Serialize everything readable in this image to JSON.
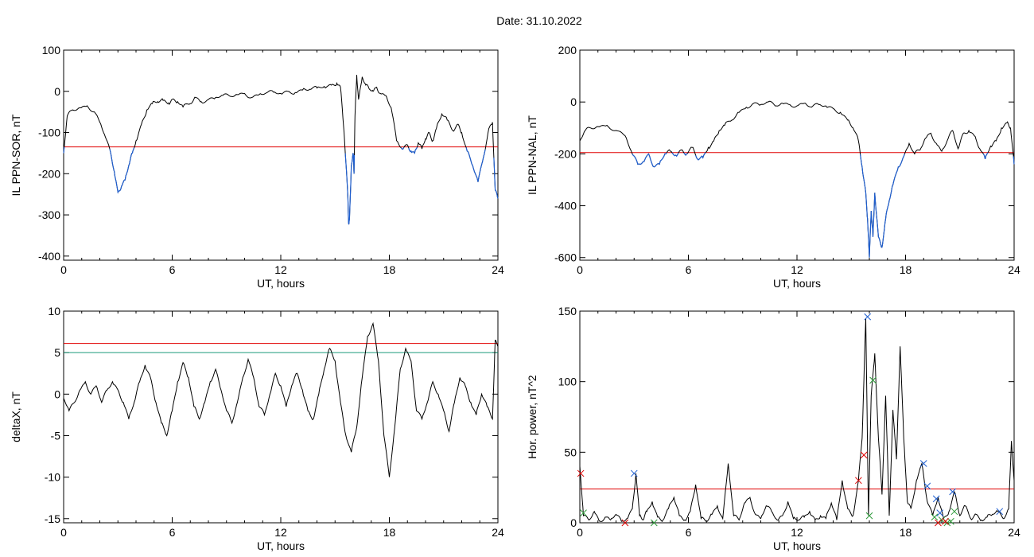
{
  "page": {
    "title": "Date:  31.10.2022"
  },
  "chart_data": [
    {
      "type": "line",
      "xlabel": "UT, hours",
      "ylabel": "IL PPN-SOR, nT",
      "xlim": [
        0,
        24
      ],
      "ylim": [
        -410,
        100
      ],
      "xticks": [
        0,
        6,
        12,
        18,
        24
      ],
      "yticks": [
        -400,
        -300,
        -200,
        -100,
        0,
        100
      ],
      "threshold": -135,
      "colors": {
        "line": "#000000",
        "below": "#1f5fd0",
        "threshold": "#e00000"
      },
      "series": [
        {
          "x": [
            0,
            0.2,
            0.5,
            0.9,
            1.3,
            1.7,
            2.0,
            2.3,
            2.6,
            2.8,
            3.0,
            3.2,
            3.4,
            3.6,
            3.8,
            4.0,
            4.3,
            4.6,
            4.9,
            5.2,
            5.5,
            5.8,
            6.0,
            6.3,
            6.6,
            7.0,
            7.3,
            7.6,
            8.0,
            8.4,
            8.8,
            9.2,
            9.6,
            10.0,
            10.4,
            10.8,
            11.2,
            11.6,
            12.0,
            12.4,
            12.8,
            13.2,
            13.6,
            14.0,
            14.4,
            14.8,
            15.1,
            15.3,
            15.5,
            15.7,
            15.75,
            15.8,
            15.9,
            16.0,
            16.05,
            16.1,
            16.2,
            16.3,
            16.5,
            16.7,
            16.9,
            17.1,
            17.3,
            17.5,
            17.8,
            18.1,
            18.4,
            18.7,
            19.0,
            19.2,
            19.4,
            19.6,
            19.8,
            20.0,
            20.2,
            20.4,
            20.6,
            20.9,
            21.2,
            21.5,
            21.8,
            22.0,
            22.3,
            22.6,
            22.9,
            23.2,
            23.5,
            23.7,
            23.85,
            24.0
          ],
          "y": [
            -150,
            -60,
            -45,
            -40,
            -35,
            -50,
            -75,
            -110,
            -150,
            -195,
            -245,
            -230,
            -215,
            -180,
            -150,
            -120,
            -80,
            -45,
            -30,
            -25,
            -22,
            -28,
            -20,
            -25,
            -38,
            -30,
            -15,
            -25,
            -20,
            -15,
            -10,
            -12,
            -8,
            -5,
            -15,
            -8,
            -4,
            -2,
            -5,
            0,
            -3,
            3,
            5,
            8,
            12,
            15,
            20,
            10,
            -100,
            -250,
            -320,
            -310,
            -180,
            -150,
            -200,
            -60,
            40,
            -20,
            35,
            15,
            5,
            0,
            10,
            -5,
            -10,
            -40,
            -120,
            -140,
            -130,
            -145,
            -150,
            -125,
            -140,
            -115,
            -100,
            -120,
            -90,
            -55,
            -70,
            -95,
            -80,
            -100,
            -145,
            -180,
            -220,
            -160,
            -90,
            -75,
            -240,
            -260
          ]
        }
      ]
    },
    {
      "type": "line",
      "xlabel": "UT, hours",
      "ylabel": "IL PPN-NAL, nT",
      "xlim": [
        0,
        24
      ],
      "ylim": [
        -610,
        200
      ],
      "xticks": [
        0,
        6,
        12,
        18,
        24
      ],
      "yticks": [
        -600,
        -400,
        -200,
        0,
        200
      ],
      "threshold": -195,
      "colors": {
        "line": "#000000",
        "below": "#1f5fd0",
        "threshold": "#e00000"
      },
      "series": [
        {
          "x": [
            0,
            0.3,
            0.6,
            1.0,
            1.5,
            2.0,
            2.5,
            2.9,
            3.2,
            3.5,
            3.8,
            4.1,
            4.4,
            4.7,
            5.0,
            5.3,
            5.6,
            5.9,
            6.2,
            6.5,
            6.8,
            7.1,
            7.4,
            7.7,
            8.0,
            8.4,
            8.8,
            9.2,
            9.6,
            10.0,
            10.4,
            10.8,
            11.2,
            11.6,
            12.0,
            12.4,
            12.8,
            13.2,
            13.6,
            14.0,
            14.4,
            14.8,
            15.1,
            15.4,
            15.6,
            15.8,
            15.9,
            16.0,
            16.1,
            16.2,
            16.3,
            16.5,
            16.7,
            16.9,
            17.1,
            17.3,
            17.6,
            17.9,
            18.2,
            18.5,
            18.8,
            19.1,
            19.4,
            19.7,
            20.0,
            20.3,
            20.6,
            20.9,
            21.2,
            21.5,
            21.8,
            22.1,
            22.4,
            22.7,
            23.0,
            23.3,
            23.6,
            23.8,
            24.0
          ],
          "y": [
            -150,
            -110,
            -100,
            -95,
            -90,
            -110,
            -130,
            -200,
            -240,
            -230,
            -200,
            -250,
            -240,
            -200,
            -190,
            -205,
            -185,
            -200,
            -175,
            -220,
            -215,
            -175,
            -150,
            -110,
            -90,
            -70,
            -40,
            -20,
            -5,
            -10,
            0,
            -15,
            -5,
            -10,
            -15,
            -5,
            -20,
            -10,
            -15,
            -25,
            -40,
            -70,
            -100,
            -150,
            -250,
            -350,
            -450,
            -600,
            -420,
            -520,
            -350,
            -520,
            -560,
            -450,
            -380,
            -320,
            -250,
            -210,
            -160,
            -200,
            -185,
            -140,
            -120,
            -160,
            -190,
            -150,
            -110,
            -180,
            -120,
            -110,
            -130,
            -180,
            -220,
            -170,
            -150,
            -100,
            -80,
            -100,
            -240
          ]
        }
      ]
    },
    {
      "type": "line",
      "xlabel": "UT, hours",
      "ylabel": "deltaX, nT",
      "xlim": [
        0,
        24
      ],
      "ylim": [
        -15.5,
        10
      ],
      "xticks": [
        0,
        6,
        12,
        18,
        24
      ],
      "yticks": [
        -15,
        -10,
        -5,
        0,
        5,
        10
      ],
      "hlines": [
        6.1,
        5.0
      ],
      "colors": {
        "line": "#000000",
        "hline_red": "#e00000",
        "hline_green": "#1a9a7a"
      },
      "series": [
        {
          "x": [
            0,
            0.3,
            0.6,
            0.9,
            1.2,
            1.5,
            1.8,
            2.1,
            2.4,
            2.7,
            3.0,
            3.3,
            3.6,
            3.9,
            4.2,
            4.5,
            4.8,
            5.1,
            5.4,
            5.7,
            6.0,
            6.3,
            6.6,
            6.9,
            7.2,
            7.5,
            7.8,
            8.1,
            8.4,
            8.7,
            9.0,
            9.3,
            9.6,
            9.9,
            10.2,
            10.5,
            10.8,
            11.1,
            11.4,
            11.7,
            12.0,
            12.3,
            12.6,
            12.9,
            13.2,
            13.5,
            13.8,
            14.1,
            14.4,
            14.7,
            15.0,
            15.3,
            15.6,
            15.9,
            16.2,
            16.5,
            16.8,
            17.1,
            17.4,
            17.7,
            18.0,
            18.3,
            18.6,
            18.9,
            19.2,
            19.5,
            19.8,
            20.1,
            20.4,
            20.7,
            21.0,
            21.3,
            21.6,
            21.9,
            22.2,
            22.5,
            22.8,
            23.1,
            23.4,
            23.7,
            23.85,
            24.0
          ],
          "y": [
            -0.5,
            -2,
            -1,
            0.5,
            1.5,
            0,
            1,
            -1,
            0.5,
            1.5,
            0.5,
            -1,
            -3,
            -1,
            1.5,
            3.5,
            2,
            -1,
            -3.5,
            -5,
            -2,
            1.5,
            3.8,
            2,
            -1.5,
            -3,
            -1,
            1.5,
            3,
            0.5,
            -2,
            -3.5,
            -1,
            2,
            4.2,
            2,
            -1.5,
            -2.5,
            0,
            2.5,
            1,
            -1.5,
            1,
            2.5,
            0.5,
            -2,
            -3,
            0,
            3,
            5.5,
            4,
            -1,
            -5,
            -7,
            -4,
            2,
            7,
            8.5,
            4,
            -5,
            -10,
            -4,
            3,
            5.5,
            4,
            -2,
            -3,
            -1,
            1.5,
            0,
            -2,
            -4.5,
            -1,
            2,
            1,
            -1,
            -2.5,
            0,
            -1.5,
            -3,
            6.5,
            6
          ]
        }
      ]
    },
    {
      "type": "line",
      "xlabel": "UT, hours",
      "ylabel": "Hor. power, nT^2",
      "xlim": [
        0,
        24
      ],
      "ylim": [
        0,
        150
      ],
      "xticks": [
        0,
        6,
        12,
        18,
        24
      ],
      "yticks": [
        0,
        50,
        100,
        150
      ],
      "threshold": 24,
      "colors": {
        "line": "#000000",
        "threshold": "#e00000",
        "marker_blue": "#1f5fd0",
        "marker_green": "#2e9a3a",
        "marker_red": "#e00000"
      },
      "series": [
        {
          "x": [
            0,
            0.2,
            0.5,
            0.8,
            1.1,
            1.4,
            1.7,
            2.0,
            2.3,
            2.6,
            2.9,
            3.1,
            3.3,
            3.5,
            3.7,
            4.0,
            4.3,
            4.6,
            4.9,
            5.2,
            5.5,
            5.8,
            6.1,
            6.4,
            6.7,
            7.0,
            7.3,
            7.6,
            7.9,
            8.2,
            8.5,
            8.8,
            9.1,
            9.4,
            9.7,
            10.0,
            10.3,
            10.6,
            10.9,
            11.2,
            11.5,
            11.8,
            12.1,
            12.4,
            12.7,
            13.0,
            13.3,
            13.6,
            13.9,
            14.2,
            14.5,
            14.8,
            15.1,
            15.4,
            15.6,
            15.8,
            15.95,
            16.1,
            16.3,
            16.5,
            16.7,
            16.9,
            17.1,
            17.3,
            17.5,
            17.7,
            17.9,
            18.1,
            18.3,
            18.6,
            18.9,
            19.2,
            19.5,
            19.8,
            20.1,
            20.4,
            20.7,
            21.0,
            21.3,
            21.6,
            21.9,
            22.2,
            22.5,
            22.8,
            23.1,
            23.4,
            23.7,
            23.85,
            24.0
          ],
          "y": [
            40,
            5,
            2,
            8,
            1,
            4,
            2,
            6,
            1,
            3,
            10,
            35,
            5,
            2,
            8,
            15,
            4,
            2,
            10,
            18,
            5,
            2,
            8,
            27,
            3,
            1,
            6,
            12,
            3,
            42,
            5,
            2,
            14,
            18,
            6,
            3,
            12,
            8,
            2,
            5,
            15,
            3,
            2,
            4,
            8,
            2,
            5,
            3,
            14,
            2,
            30,
            10,
            5,
            30,
            60,
            145,
            5,
            90,
            120,
            60,
            20,
            90,
            5,
            80,
            45,
            125,
            60,
            15,
            10,
            30,
            42,
            15,
            5,
            18,
            3,
            8,
            22,
            5,
            12,
            3,
            6,
            2,
            4,
            6,
            8,
            3,
            10,
            58,
            30
          ]
        }
      ],
      "markers": {
        "blue": {
          "x": [
            3.0,
            15.9,
            19.0,
            19.2,
            19.7,
            19.9,
            20.6,
            23.2
          ],
          "y": [
            35,
            146,
            42,
            26,
            17,
            7,
            22,
            8
          ]
        },
        "green": {
          "x": [
            0.2,
            4.1,
            16.0,
            16.2,
            19.6,
            20.0,
            20.3,
            20.5,
            20.7
          ],
          "y": [
            7,
            0,
            5,
            101,
            4,
            2,
            0,
            1,
            8
          ]
        },
        "red": {
          "x": [
            0.05,
            2.5,
            15.4,
            15.7,
            19.8,
            20.2
          ],
          "y": [
            35,
            0,
            30,
            48,
            0,
            1
          ]
        }
      }
    }
  ]
}
